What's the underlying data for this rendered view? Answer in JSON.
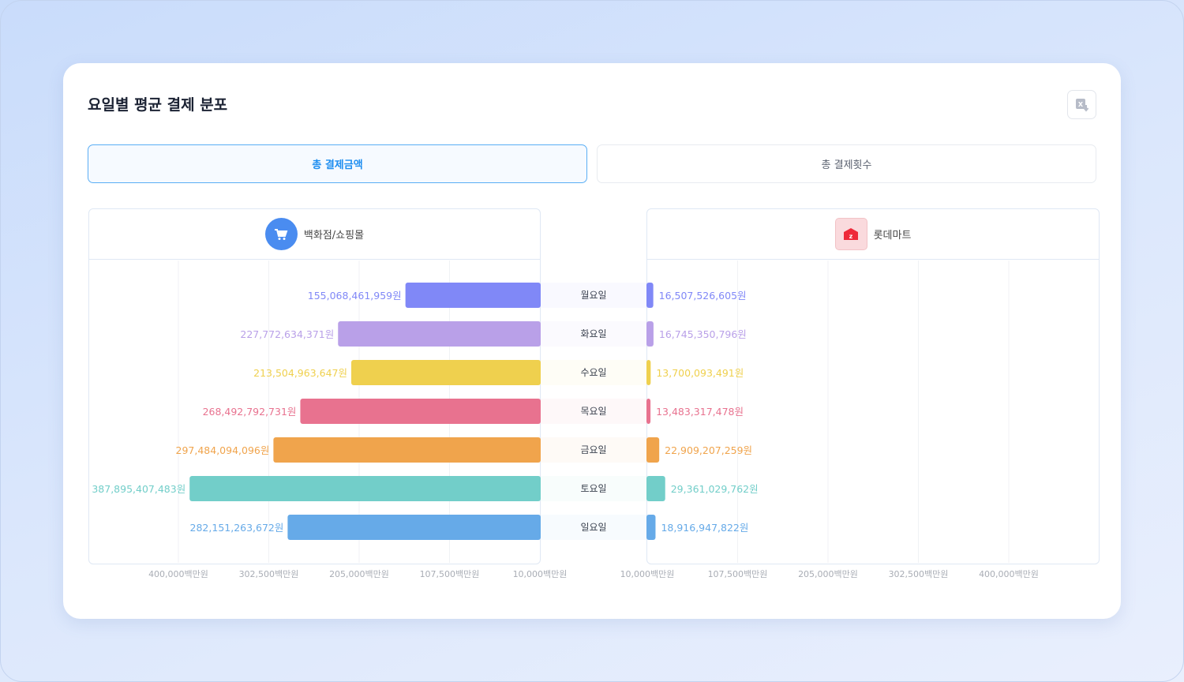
{
  "title": "요일별 평균 결제 분포",
  "tabs": [
    {
      "label": "총 결제금액",
      "active": true
    },
    {
      "label": "총 결제횟수",
      "active": false
    }
  ],
  "colors": {
    "accent": "#1e8ef0"
  },
  "chart_data": {
    "type": "bar",
    "orientation": "horizontal-butterfly",
    "categories": [
      "월요일",
      "화요일",
      "수요일",
      "목요일",
      "금요일",
      "토요일",
      "일요일"
    ],
    "series": [
      {
        "name": "백화점/쇼핑몰",
        "icon": "cart-icon",
        "side": "left",
        "values": [
          155068461959,
          227772634371,
          213504963647,
          268492792731,
          297484094096,
          387895407483,
          282151263672
        ],
        "labels": [
          "155,068,461,959원",
          "227,772,634,371원",
          "213,504,963,647원",
          "268,492,792,731원",
          "297,484,094,096원",
          "387,895,407,483원",
          "282,151,263,672원"
        ]
      },
      {
        "name": "롯데마트",
        "icon": "lotte-mart-logo-icon",
        "side": "right",
        "values": [
          16507526605,
          16745350796,
          13700093491,
          13483317478,
          22909207259,
          29361029762,
          18916947822
        ],
        "labels": [
          "16,507,526,605원",
          "16,745,350,796원",
          "13,700,093,491원",
          "13,483,317,478원",
          "22,909,207,259원",
          "29,361,029,762원",
          "18,916,947,822원"
        ]
      }
    ],
    "category_colors": [
      "#8088f7",
      "#b9a0e8",
      "#efd04e",
      "#e8728f",
      "#f0a44c",
      "#72cec9",
      "#66aae8"
    ],
    "axis_unit": "백만원",
    "xlim_millions": [
      10000,
      400000
    ],
    "ticks_left": [
      "400,000백만원",
      "302,500백만원",
      "205,000백만원",
      "107,500백만원",
      "10,000백만원"
    ],
    "ticks_right": [
      "10,000백만원",
      "107,500백만원",
      "205,000백만원",
      "302,500백만원",
      "400,000백만원"
    ],
    "tick_values_millions": [
      10000,
      107500,
      205000,
      302500,
      400000
    ]
  }
}
